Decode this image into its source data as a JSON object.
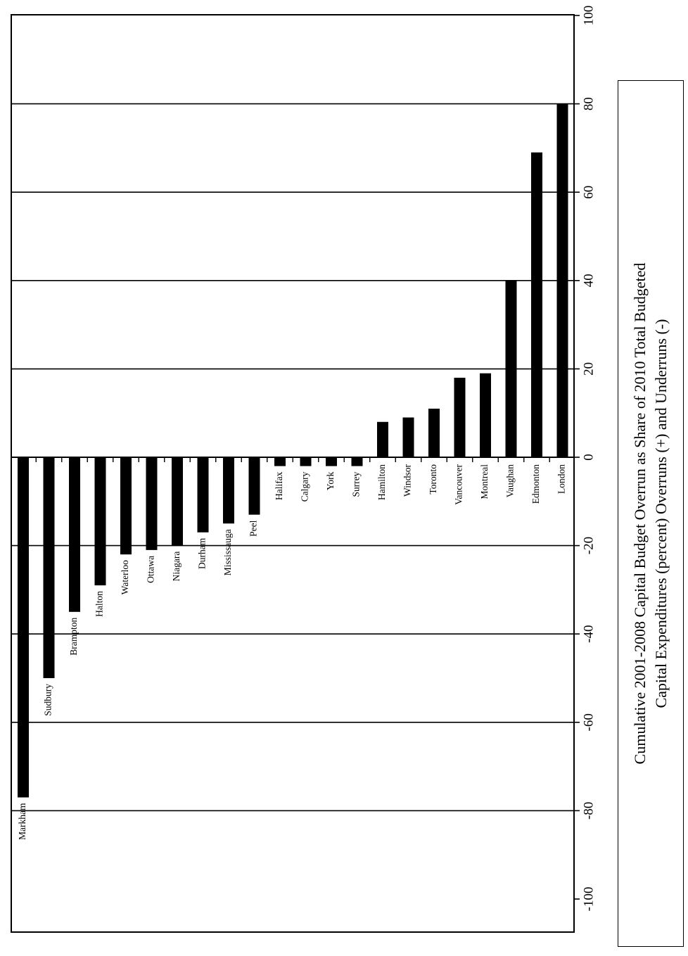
{
  "chart_data": {
    "type": "bar",
    "orientation": "horizontal, figure rotated 90 degrees",
    "categories": [
      "Markham",
      "Sudbury",
      "Brampton",
      "Halton",
      "Waterloo",
      "Ottawa",
      "Niagara",
      "Durham",
      "Mississauga",
      "Peel",
      "Halifax",
      "Calgary",
      "York",
      "Surrey",
      "Hamilton",
      "Windsor",
      "Toronto",
      "Vancouver",
      "Montreal",
      "Vaughan",
      "Edmonton",
      "London"
    ],
    "values": [
      -77,
      -50,
      -35,
      -29,
      -22,
      -21,
      -20,
      -17,
      -15,
      -13,
      -2,
      -2,
      -2,
      -2,
      8,
      9,
      11,
      18,
      19,
      40,
      69,
      80
    ],
    "axis_ticks": [
      "100",
      "80",
      "60",
      "40",
      "20",
      "0",
      "-20",
      "-40",
      "-60",
      "-80",
      "-100"
    ],
    "ylim": [
      -100,
      100
    ],
    "grid": true,
    "title_lines": [
      "Cumulative 2001-2008 Capital Budget Overrun as Share of 2010 Total Budgeted",
      "Capital Expenditures (percent) Overruns (+) and Underruns (-)"
    ]
  }
}
